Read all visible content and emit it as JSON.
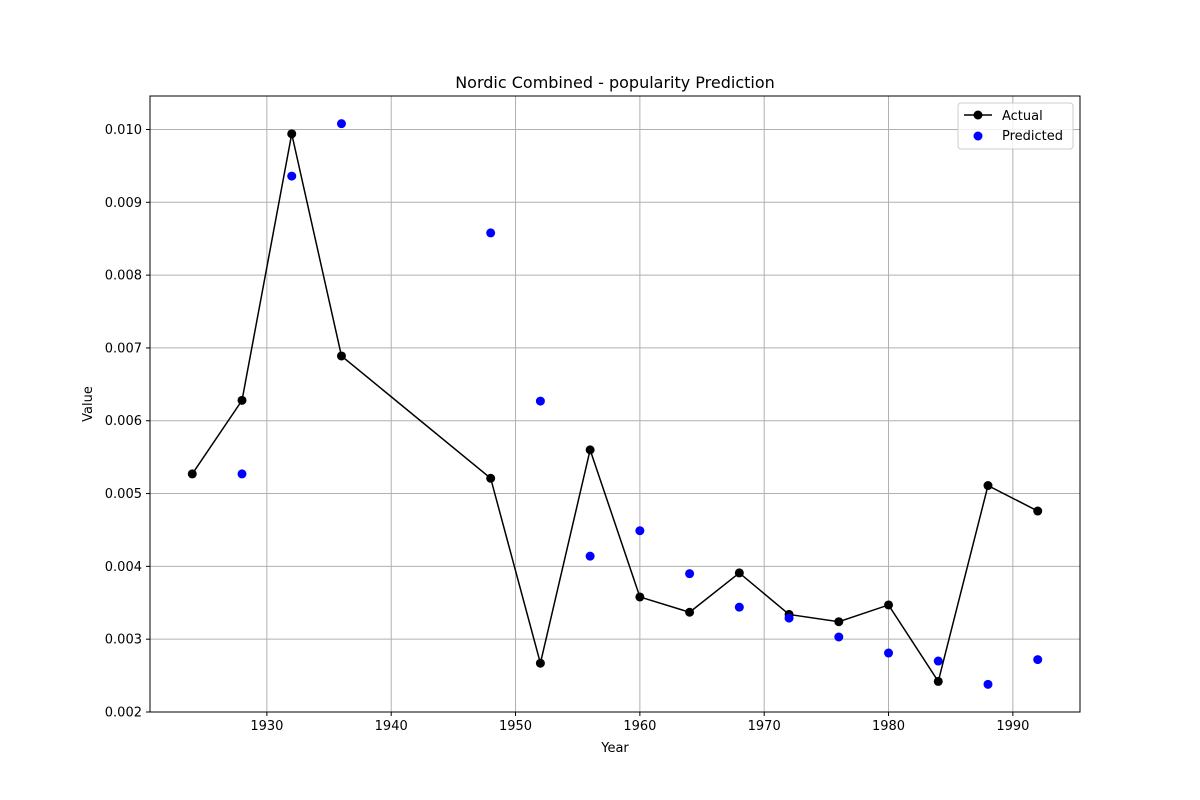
{
  "chart_data": {
    "type": "line",
    "title": "Nordic Combined - popularity Prediction",
    "xlabel": "Year",
    "ylabel": "Value",
    "xlim": [
      1920.6,
      1995.4
    ],
    "ylim": [
      0.002,
      0.01046
    ],
    "xticks": [
      1930,
      1940,
      1950,
      1960,
      1970,
      1980,
      1990
    ],
    "yticks": [
      0.002,
      0.003,
      0.004,
      0.005,
      0.006,
      0.007,
      0.008,
      0.009,
      0.01
    ],
    "ytick_labels": [
      "0.002",
      "0.003",
      "0.004",
      "0.005",
      "0.006",
      "0.007",
      "0.008",
      "0.009",
      "0.010"
    ],
    "grid": true,
    "legend_position": "top-right",
    "series": [
      {
        "name": "Actual",
        "kind": "line-marker",
        "color": "#000000",
        "x": [
          1924,
          1928,
          1932,
          1936,
          1948,
          1952,
          1956,
          1960,
          1964,
          1968,
          1972,
          1976,
          1980,
          1984,
          1988,
          1992
        ],
        "y": [
          0.00527,
          0.00628,
          0.00994,
          0.00689,
          0.00521,
          0.00267,
          0.0056,
          0.00358,
          0.00337,
          0.00391,
          0.00334,
          0.00324,
          0.00347,
          0.00242,
          0.00511,
          0.00476
        ]
      },
      {
        "name": "Predicted",
        "kind": "scatter",
        "color": "#0000ff",
        "x": [
          1928,
          1932,
          1936,
          1948,
          1952,
          1956,
          1960,
          1964,
          1968,
          1972,
          1976,
          1980,
          1984,
          1988,
          1992
        ],
        "y": [
          0.00527,
          0.00936,
          0.01008,
          0.00858,
          0.00627,
          0.00414,
          0.00449,
          0.0039,
          0.00344,
          0.00329,
          0.00303,
          0.00281,
          0.0027,
          0.00238,
          0.00272
        ]
      }
    ]
  }
}
